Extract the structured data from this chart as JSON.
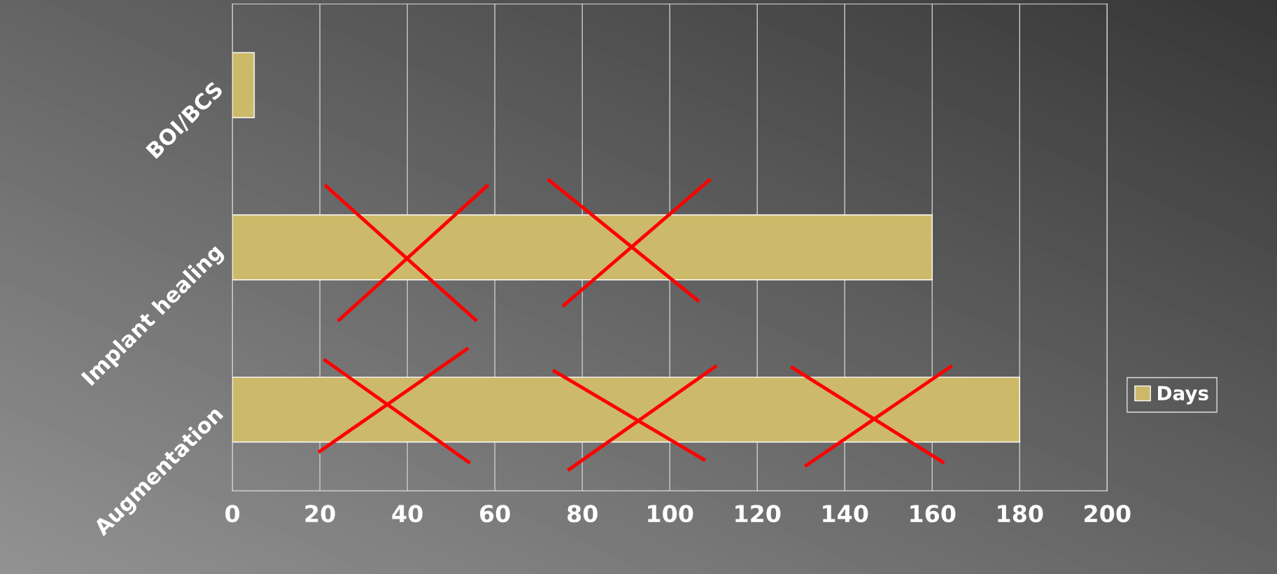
{
  "chart_data": {
    "type": "bar",
    "orientation": "horizontal",
    "categories": [
      "BOI/BCS",
      "Implant healing",
      "Augmentation"
    ],
    "series": [
      {
        "name": "Days",
        "color": "#cdb96a",
        "values": [
          5,
          160,
          180
        ]
      }
    ],
    "xlim": [
      0,
      200
    ],
    "xticks": [
      0,
      20,
      40,
      60,
      80,
      100,
      120,
      140,
      160,
      180,
      200
    ],
    "grid": "x",
    "legend": "bottom right"
  }
}
